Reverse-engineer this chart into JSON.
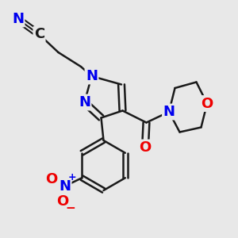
{
  "bg_color": "#e8e8e8",
  "bond_color": "#1a1a1a",
  "bond_width": 1.8,
  "atom_colors": {
    "N": "#0000ee",
    "O": "#ee0000",
    "C": "#1a1a1a"
  },
  "font_size": 13
}
